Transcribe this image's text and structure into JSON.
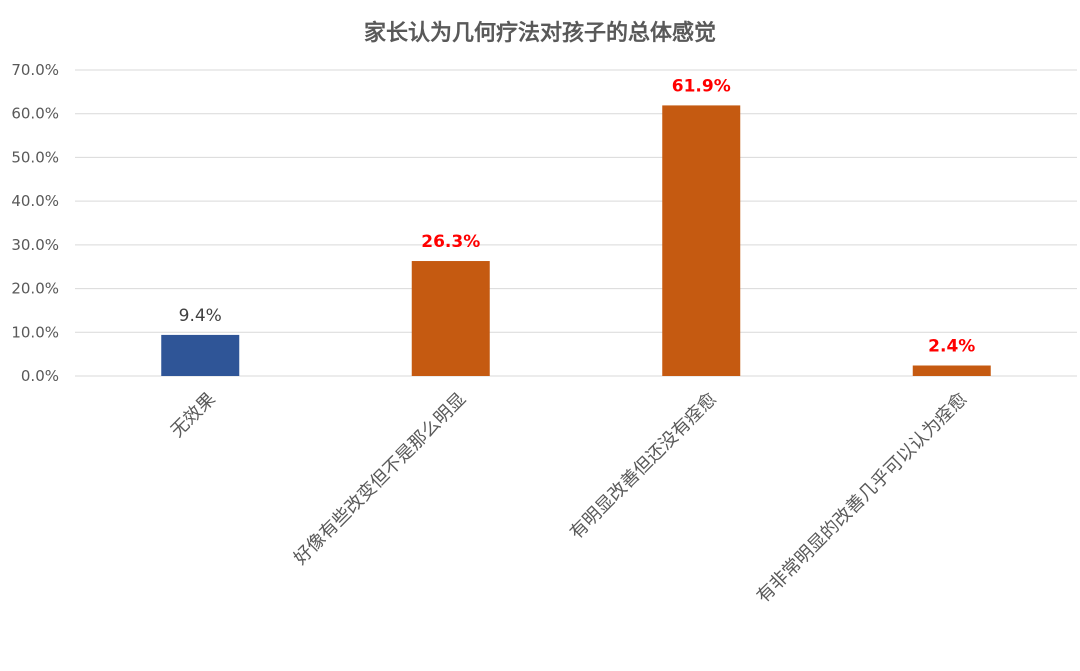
{
  "chart_data": {
    "type": "bar",
    "title": "家长认为几何疗法对孩子的总体感觉",
    "categories": [
      "无效果",
      "好像有些改变但不是那么明显",
      "有明显改善但还没有痊愈",
      "有非常明显的改善几乎可以认为痊愈"
    ],
    "values": [
      9.4,
      26.3,
      61.9,
      2.4
    ],
    "data_labels": [
      "9.4%",
      "26.3%",
      "61.9%",
      "2.4%"
    ],
    "bar_colors": [
      "#2F5597",
      "#C55A11",
      "#C55A11",
      "#C55A11"
    ],
    "label_colors": [
      "#404040",
      "#FF0000",
      "#FF0000",
      "#FF0000"
    ],
    "label_bold": [
      false,
      true,
      true,
      true
    ],
    "ylim": [
      0,
      70
    ],
    "yticks": [
      0,
      10,
      20,
      30,
      40,
      50,
      60,
      70
    ],
    "ytick_labels": [
      "0.0%",
      "10.0%",
      "20.0%",
      "30.0%",
      "40.0%",
      "50.0%",
      "60.0%",
      "70.0%"
    ],
    "grid": true,
    "legend": "none",
    "colors": {
      "gridline": "#D9D9D9",
      "text": "#595959"
    }
  }
}
